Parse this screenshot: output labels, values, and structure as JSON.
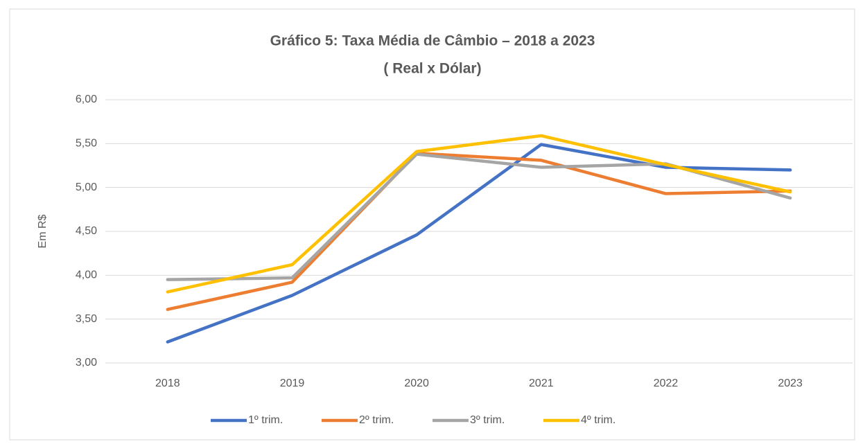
{
  "chart_data": {
    "type": "line",
    "title": "Gráfico 5: Taxa Média de Câmbio – 2018 a 2023",
    "subtitle": "( Real x Dólar)",
    "y_label": "Em R$",
    "categories": [
      "2018",
      "2019",
      "2020",
      "2021",
      "2022",
      "2023"
    ],
    "series": [
      {
        "name": "1º trim.",
        "color": "#4472c4",
        "values": [
          3.24,
          3.77,
          4.46,
          5.49,
          5.23,
          5.2
        ]
      },
      {
        "name": "2º trim.",
        "color": "#ed7d31",
        "values": [
          3.61,
          3.92,
          5.39,
          5.31,
          4.93,
          4.96
        ]
      },
      {
        "name": "3º trim.",
        "color": "#a5a5a5",
        "values": [
          3.95,
          3.97,
          5.38,
          5.23,
          5.27,
          4.88
        ]
      },
      {
        "name": "4º trim.",
        "color": "#ffc000",
        "values": [
          3.81,
          4.12,
          5.41,
          5.59,
          5.26,
          4.95
        ]
      }
    ],
    "ylim": [
      3,
      6
    ],
    "yticks": [
      {
        "value": 3,
        "label": "3,00"
      },
      {
        "value": 3.5,
        "label": "3,50"
      },
      {
        "value": 4,
        "label": "4,00"
      },
      {
        "value": 4.5,
        "label": "4,50"
      },
      {
        "value": 5,
        "label": "5,00"
      },
      {
        "value": 5.5,
        "label": "5,50"
      },
      {
        "value": 6,
        "label": "6,00"
      }
    ],
    "grid": true,
    "legend": "bottom"
  }
}
